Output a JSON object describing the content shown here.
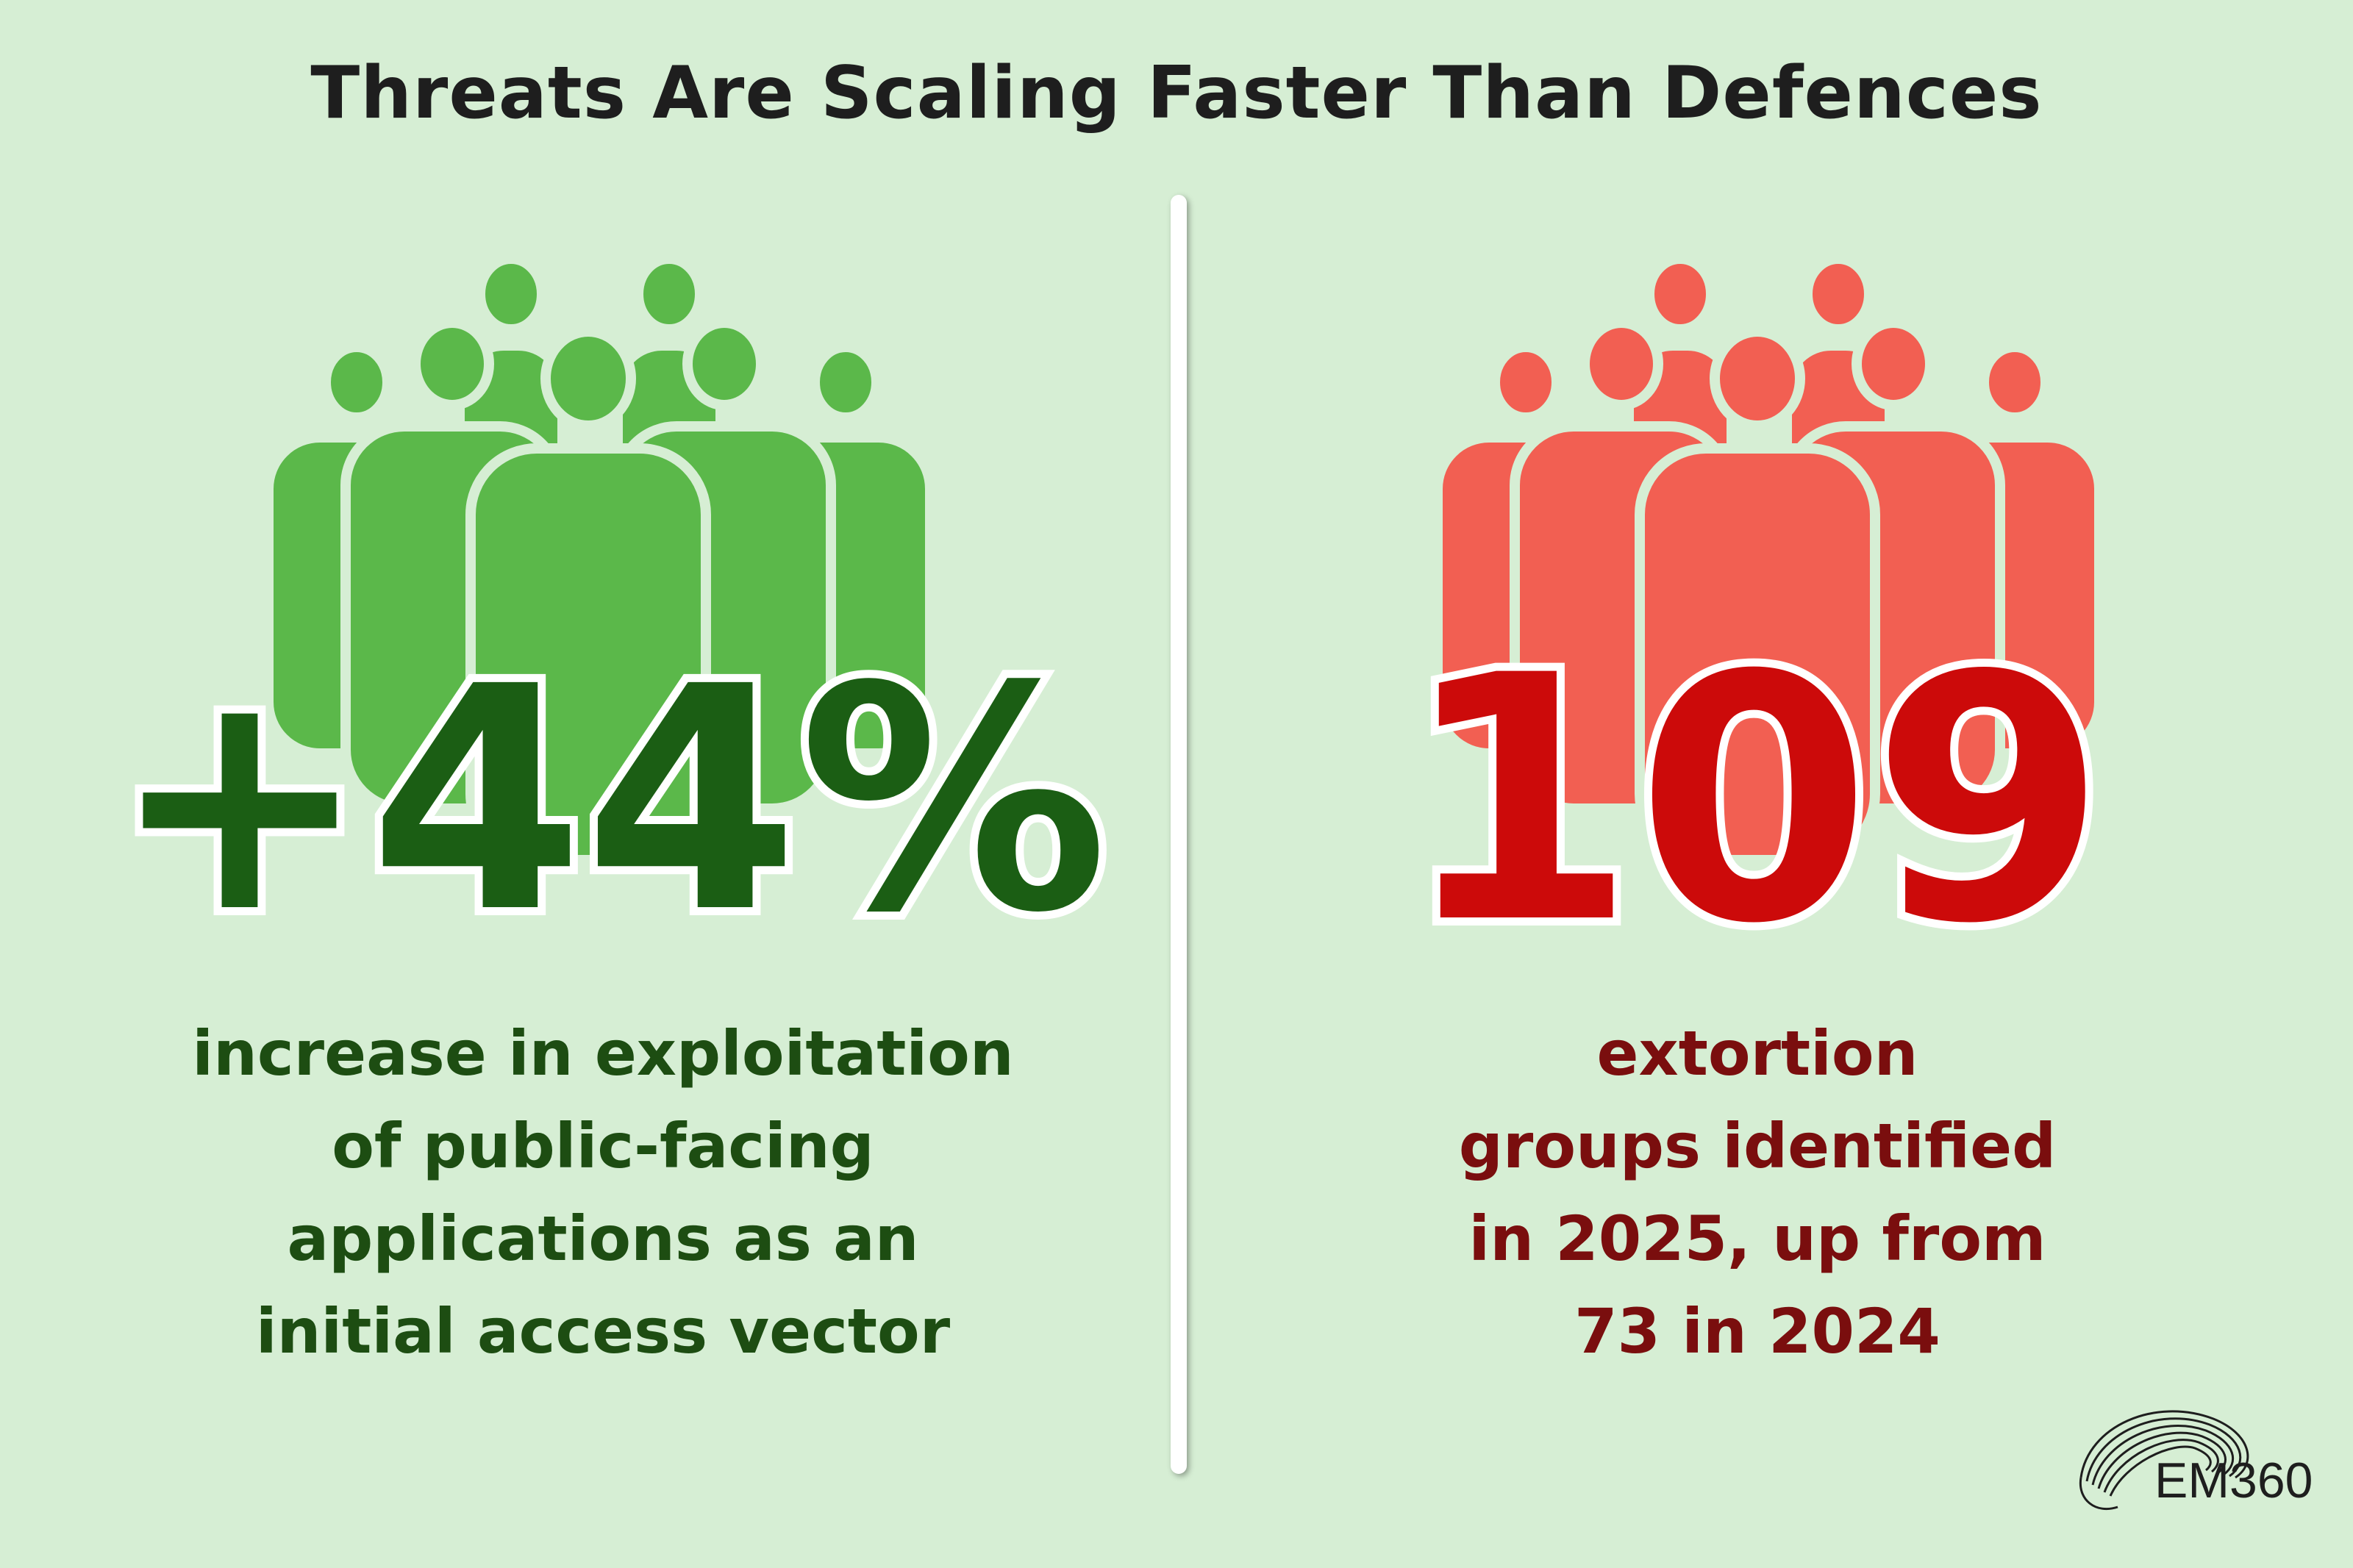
{
  "title": "Threats Are Scaling Faster Than Defences",
  "left": {
    "stat": "+44%",
    "description_lines": [
      "increase in exploitation",
      "of public-facing",
      "applications as an",
      "initial access vector"
    ],
    "icon": "people-group-icon",
    "color": "#5bb84a"
  },
  "right": {
    "stat": "109",
    "description_lines": [
      "extortion",
      "groups identified",
      "in 2025, up from",
      "73 in 2024"
    ],
    "icon": "people-group-icon",
    "color": "#f25f52"
  },
  "logo": {
    "text": "EM360",
    "icon": "em360-logo-icon"
  }
}
